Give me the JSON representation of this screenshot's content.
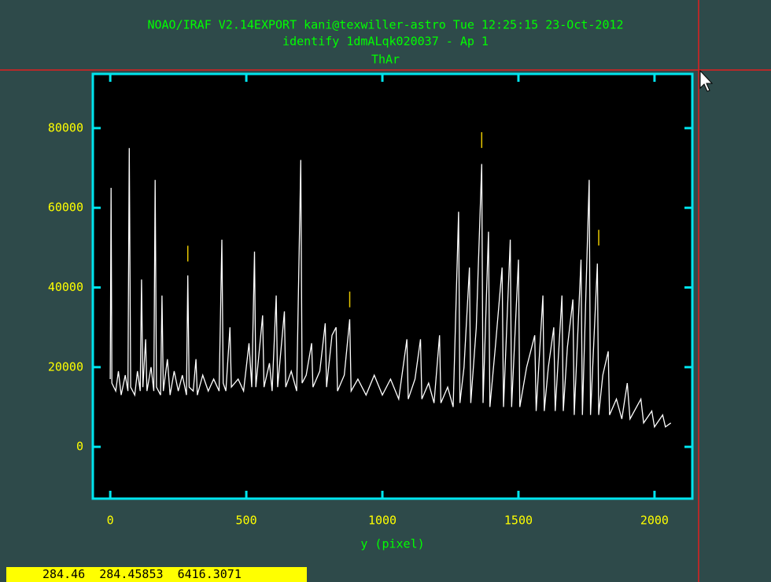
{
  "chart_data": {
    "type": "line",
    "title_lines": [
      "NOAO/IRAF V2.14EXPORT kani@texwiller-astro Tue 12:25:15 23-Oct-2012",
      "identify 1dmALqk020037 - Ap 1",
      "ThAr"
    ],
    "xlabel": "y (pixel)",
    "color": "#ffffff",
    "frame_color": "#00e5ee",
    "text_color": "#ffff00",
    "title_color": "#00ff00",
    "xlim": [
      -64,
      2139
    ],
    "ylim": [
      -13000,
      93600
    ],
    "xticks": [
      0,
      500,
      1000,
      1500,
      2000
    ],
    "yticks": [
      0,
      20000,
      40000,
      60000,
      80000
    ],
    "x": [
      0,
      3,
      6,
      20,
      30,
      40,
      55,
      65,
      70,
      75,
      90,
      100,
      110,
      115,
      120,
      130,
      135,
      150,
      160,
      165,
      170,
      185,
      190,
      195,
      210,
      220,
      235,
      250,
      265,
      280,
      285,
      290,
      305,
      315,
      320,
      340,
      360,
      380,
      400,
      410,
      415,
      425,
      440,
      445,
      470,
      490,
      510,
      520,
      530,
      535,
      560,
      565,
      585,
      595,
      610,
      615,
      640,
      645,
      665,
      685,
      700,
      705,
      720,
      740,
      745,
      770,
      790,
      795,
      815,
      830,
      835,
      860,
      880,
      885,
      910,
      940,
      970,
      1000,
      1030,
      1060,
      1090,
      1095,
      1120,
      1140,
      1145,
      1170,
      1190,
      1210,
      1215,
      1240,
      1260,
      1280,
      1285,
      1300,
      1320,
      1325,
      1345,
      1365,
      1370,
      1390,
      1395,
      1415,
      1440,
      1445,
      1470,
      1475,
      1500,
      1505,
      1530,
      1560,
      1565,
      1590,
      1595,
      1610,
      1630,
      1635,
      1660,
      1665,
      1680,
      1700,
      1705,
      1730,
      1735,
      1760,
      1765,
      1790,
      1795,
      1810,
      1830,
      1835,
      1860,
      1880,
      1900,
      1910,
      1950,
      1960,
      1990,
      2000,
      2030,
      2040,
      2060
    ],
    "values": [
      17000,
      65000,
      16000,
      14000,
      19000,
      13000,
      18000,
      14000,
      75000,
      15000,
      13000,
      19000,
      14000,
      42000,
      15000,
      27000,
      14000,
      20000,
      14000,
      67000,
      15000,
      13000,
      38000,
      14000,
      22000,
      13000,
      19000,
      14000,
      18000,
      13000,
      43000,
      15000,
      14000,
      22000,
      13000,
      18000,
      14000,
      17000,
      14000,
      52000,
      16000,
      14000,
      30000,
      15000,
      17000,
      14000,
      26000,
      15000,
      49000,
      15000,
      33000,
      15000,
      21000,
      14000,
      38000,
      15000,
      34000,
      15000,
      19000,
      14000,
      72000,
      16000,
      18000,
      26000,
      15000,
      19000,
      31000,
      15000,
      28000,
      30000,
      14000,
      18000,
      32000,
      14000,
      17000,
      13000,
      18000,
      13000,
      17000,
      12000,
      27000,
      12000,
      17000,
      27000,
      12000,
      16000,
      11000,
      28000,
      11000,
      15000,
      10000,
      59000,
      11000,
      20000,
      45000,
      11000,
      30000,
      71000,
      11000,
      54000,
      10000,
      25000,
      45000,
      10000,
      52000,
      10000,
      47000,
      10000,
      20000,
      28000,
      9000,
      38000,
      9000,
      20000,
      30000,
      9000,
      38000,
      9000,
      25000,
      37000,
      8000,
      47000,
      8000,
      67000,
      8000,
      46000,
      8000,
      18000,
      24000,
      8000,
      12000,
      7000,
      16000,
      7000,
      12000,
      6000,
      9000,
      5000,
      8000,
      5000,
      6000
    ],
    "feature_marks": {
      "color": "#e8c800",
      "x": [
        285,
        880,
        1365,
        1795
      ],
      "values": [
        48500,
        37000,
        77000,
        52500
      ]
    }
  },
  "status_bar": {
    "text": "284.46  284.45853  6416.3071"
  }
}
